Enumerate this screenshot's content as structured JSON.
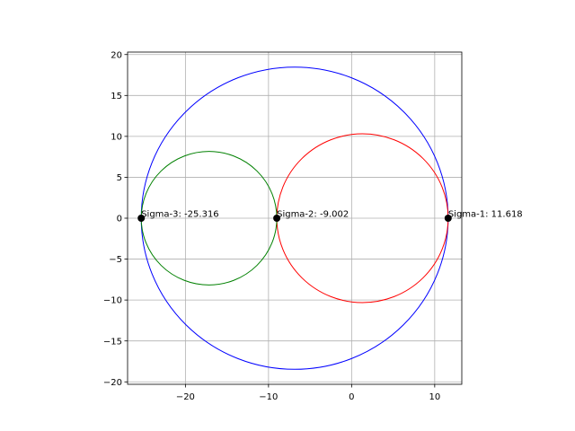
{
  "chart_data": {
    "type": "scatter",
    "title": "",
    "xlabel": "",
    "ylabel": "",
    "xlim": [
      -26.96,
      13.26
    ],
    "ylim": [
      -20.3,
      20.3
    ],
    "xticks": [
      -20,
      -10,
      0,
      10
    ],
    "yticks": [
      -20,
      -15,
      -10,
      -5,
      0,
      5,
      10,
      15,
      20
    ],
    "grid": true,
    "aspect": "equal",
    "points": [
      {
        "x": -25.316,
        "y": 0,
        "label": "Sigma-3: -25.316"
      },
      {
        "x": -9.002,
        "y": 0,
        "label": "Sigma-2: -9.002"
      },
      {
        "x": 11.618,
        "y": 0,
        "label": "Sigma-1: 11.618"
      }
    ],
    "circles": [
      {
        "cx": -6.849,
        "r": 18.467,
        "color": "#0000ff"
      },
      {
        "cx": 1.308,
        "r": 10.31,
        "color": "#ff0000"
      },
      {
        "cx": -17.159,
        "r": 8.157,
        "color": "#008000"
      }
    ],
    "colors": {
      "axes": "#000000",
      "grid": "#b0b0b0",
      "point": "#000000"
    }
  }
}
